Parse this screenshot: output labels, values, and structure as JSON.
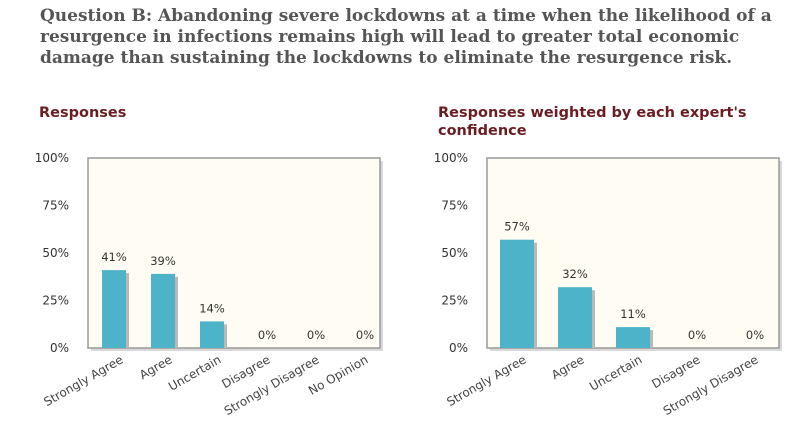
{
  "question": "Question B: Abandoning severe lockdowns at a time when the likelihood of a resurgence in infections remains high will lead to greater total economic damage than sustaining the lockdowns to eliminate the resurgence risk.",
  "colors": {
    "bar": "#4db3c9",
    "plot_bg": "#fffdf3",
    "plot_border": "#999999",
    "title": "#6b1c23"
  },
  "chart_data": [
    {
      "type": "bar",
      "title": "Responses",
      "categories": [
        "Strongly Agree",
        "Agree",
        "Uncertain",
        "Disagree",
        "Strongly Disagree",
        "No Opinion"
      ],
      "values": [
        41,
        39,
        14,
        0,
        0,
        0
      ],
      "value_labels": [
        "41%",
        "39%",
        "14%",
        "0%",
        "0%",
        "0%"
      ],
      "yticks": [
        "0%",
        "25%",
        "50%",
        "75%",
        "100%"
      ],
      "ylim": [
        0,
        100
      ],
      "grid": false
    },
    {
      "type": "bar",
      "title": "Responses weighted by each expert's confidence",
      "categories": [
        "Strongly Agree",
        "Agree",
        "Uncertain",
        "Disagree",
        "Strongly Disagree"
      ],
      "values": [
        57,
        32,
        11,
        0,
        0
      ],
      "value_labels": [
        "57%",
        "32%",
        "11%",
        "0%",
        "0%"
      ],
      "yticks": [
        "0%",
        "25%",
        "50%",
        "75%",
        "100%"
      ],
      "ylim": [
        0,
        100
      ],
      "grid": false
    }
  ]
}
